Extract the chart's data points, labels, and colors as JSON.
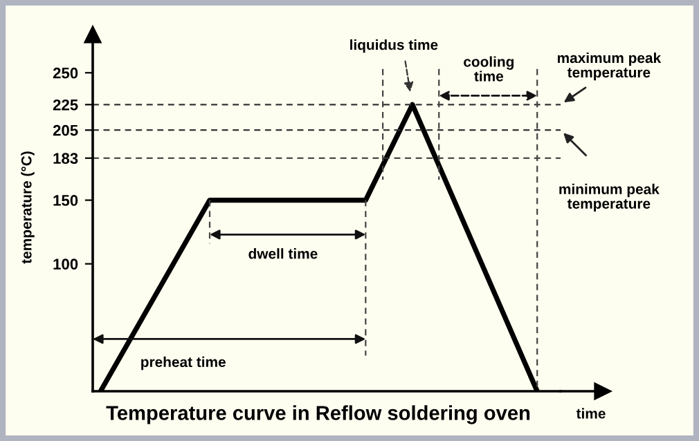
{
  "chart_data": {
    "type": "line",
    "title": "Temperature curve in Reflow soldering oven",
    "xlabel": "time",
    "ylabel": "temperature (°C)",
    "categories": [
      null,
      null,
      null,
      null,
      null,
      null,
      null,
      null,
      null,
      null,
      null,
      null,
      null,
      null,
      null,
      null,
      null,
      null,
      null,
      null,
      null,
      null,
      null,
      null,
      null,
      null,
      null,
      null,
      null,
      null
    ],
    "series": [
      {
        "color": "#000000",
        "values": [
          0,
          null,
          null,
          null,
          null,
          null,
          null,
          150,
          null,
          null,
          null,
          null,
          null,
          null,
          null,
          null,
          null,
          150,
          null,
          null,
          225,
          null,
          null,
          null,
          null,
          null,
          null,
          null,
          0,
          null
        ]
      }
    ],
    "ylim": [
      0,
      280
    ],
    "yticks": [
      100,
      150,
      183,
      205,
      225,
      250
    ],
    "ref_lines": [
      {
        "axis": "y",
        "value": 225,
        "color": "#333333",
        "line_style": "dashed"
      },
      {
        "axis": "y",
        "value": 205,
        "color": "#333333",
        "line_style": "dashed"
      },
      {
        "axis": "y",
        "value": 183,
        "color": "#333333",
        "line_style": "dashed"
      }
    ],
    "annotations": [
      "liquidus time",
      "cooling time",
      "maximum peak temperature",
      "minimum peak temperature",
      "dwell time",
      "preheat time"
    ]
  }
}
